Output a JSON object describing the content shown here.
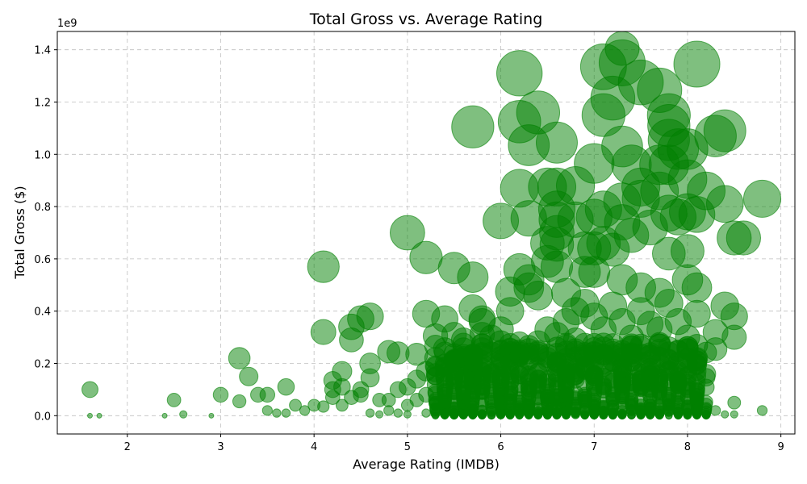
{
  "chart_data": {
    "type": "scatter",
    "title": "Total Gross vs. Average Rating",
    "xlabel": "Average Rating (IMDB)",
    "ylabel": "Total Gross ($)",
    "y_offset_label": "1e9",
    "xlim": [
      1.25,
      9.15
    ],
    "ylim": [
      -0.07,
      1.47
    ],
    "xticks": [
      2,
      3,
      4,
      5,
      6,
      7,
      8,
      9
    ],
    "yticks": [
      0.0,
      0.2,
      0.4,
      0.6,
      0.8,
      1.0,
      1.2,
      1.4
    ],
    "x_tick_labels": [
      "2",
      "3",
      "4",
      "5",
      "6",
      "7",
      "8",
      "9"
    ],
    "y_tick_labels": [
      "0.0",
      "0.2",
      "0.4",
      "0.6",
      "0.8",
      "1.0",
      "1.2",
      "1.4"
    ],
    "grid": true,
    "marker_color": "#008000",
    "marker_alpha": 0.5,
    "size_encoding": "marker area proportional to total gross",
    "points": [
      {
        "x": 1.6,
        "y": 0.1
      },
      {
        "x": 1.6,
        "y": 0.0
      },
      {
        "x": 1.7,
        "y": 0.0
      },
      {
        "x": 2.5,
        "y": 0.06
      },
      {
        "x": 2.6,
        "y": 0.005
      },
      {
        "x": 2.4,
        "y": 0.0
      },
      {
        "x": 2.9,
        "y": 0.0
      },
      {
        "x": 3.0,
        "y": 0.08
      },
      {
        "x": 3.2,
        "y": 0.22
      },
      {
        "x": 3.2,
        "y": 0.055
      },
      {
        "x": 3.3,
        "y": 0.15
      },
      {
        "x": 3.4,
        "y": 0.08
      },
      {
        "x": 3.5,
        "y": 0.08
      },
      {
        "x": 3.5,
        "y": 0.02
      },
      {
        "x": 3.6,
        "y": 0.01
      },
      {
        "x": 3.7,
        "y": 0.11
      },
      {
        "x": 3.7,
        "y": 0.01
      },
      {
        "x": 3.8,
        "y": 0.04
      },
      {
        "x": 3.9,
        "y": 0.02
      },
      {
        "x": 4.0,
        "y": 0.04
      },
      {
        "x": 4.1,
        "y": 0.57
      },
      {
        "x": 4.1,
        "y": 0.32
      },
      {
        "x": 4.1,
        "y": 0.035
      },
      {
        "x": 4.2,
        "y": 0.135
      },
      {
        "x": 4.2,
        "y": 0.07
      },
      {
        "x": 4.2,
        "y": 0.1
      },
      {
        "x": 4.3,
        "y": 0.17
      },
      {
        "x": 4.3,
        "y": 0.04
      },
      {
        "x": 4.3,
        "y": 0.11
      },
      {
        "x": 4.4,
        "y": 0.34
      },
      {
        "x": 4.4,
        "y": 0.29
      },
      {
        "x": 4.4,
        "y": 0.07
      },
      {
        "x": 4.5,
        "y": 0.37
      },
      {
        "x": 4.5,
        "y": 0.08
      },
      {
        "x": 4.5,
        "y": 0.1
      },
      {
        "x": 4.6,
        "y": 0.38
      },
      {
        "x": 4.6,
        "y": 0.2
      },
      {
        "x": 4.6,
        "y": 0.145
      },
      {
        "x": 4.7,
        "y": 0.06
      },
      {
        "x": 4.8,
        "y": 0.245
      },
      {
        "x": 4.8,
        "y": 0.06
      },
      {
        "x": 4.9,
        "y": 0.24
      },
      {
        "x": 4.9,
        "y": 0.1
      },
      {
        "x": 5.0,
        "y": 0.7
      },
      {
        "x": 5.0,
        "y": 0.11
      },
      {
        "x": 5.1,
        "y": 0.235
      },
      {
        "x": 5.1,
        "y": 0.14
      },
      {
        "x": 5.2,
        "y": 0.605
      },
      {
        "x": 5.2,
        "y": 0.39
      },
      {
        "x": 5.2,
        "y": 0.17
      },
      {
        "x": 5.3,
        "y": 0.305
      },
      {
        "x": 5.3,
        "y": 0.22
      },
      {
        "x": 5.3,
        "y": 0.19
      },
      {
        "x": 5.4,
        "y": 0.37
      },
      {
        "x": 5.4,
        "y": 0.255
      },
      {
        "x": 5.5,
        "y": 0.565
      },
      {
        "x": 5.5,
        "y": 0.31
      },
      {
        "x": 5.6,
        "y": 0.29
      },
      {
        "x": 5.7,
        "y": 1.105
      },
      {
        "x": 5.7,
        "y": 0.53
      },
      {
        "x": 5.7,
        "y": 0.41
      },
      {
        "x": 5.8,
        "y": 0.37
      },
      {
        "x": 5.8,
        "y": 0.36
      },
      {
        "x": 5.8,
        "y": 0.31
      },
      {
        "x": 5.9,
        "y": 0.3
      },
      {
        "x": 6.0,
        "y": 0.745
      },
      {
        "x": 6.0,
        "y": 0.33
      },
      {
        "x": 6.0,
        "y": 0.28
      },
      {
        "x": 6.1,
        "y": 0.475
      },
      {
        "x": 6.1,
        "y": 0.4
      },
      {
        "x": 6.2,
        "y": 1.31
      },
      {
        "x": 6.2,
        "y": 1.125
      },
      {
        "x": 6.2,
        "y": 0.87
      },
      {
        "x": 6.2,
        "y": 0.56
      },
      {
        "x": 6.3,
        "y": 1.035
      },
      {
        "x": 6.3,
        "y": 0.755
      },
      {
        "x": 6.3,
        "y": 0.52
      },
      {
        "x": 6.3,
        "y": 0.49
      },
      {
        "x": 6.4,
        "y": 1.16
      },
      {
        "x": 6.4,
        "y": 0.46
      },
      {
        "x": 6.5,
        "y": 0.875
      },
      {
        "x": 6.5,
        "y": 0.66
      },
      {
        "x": 6.5,
        "y": 0.59
      },
      {
        "x": 6.6,
        "y": 1.045
      },
      {
        "x": 6.6,
        "y": 0.875
      },
      {
        "x": 6.6,
        "y": 0.79
      },
      {
        "x": 6.6,
        "y": 0.75
      },
      {
        "x": 6.6,
        "y": 0.7
      },
      {
        "x": 6.6,
        "y": 0.655
      },
      {
        "x": 6.6,
        "y": 0.57
      },
      {
        "x": 6.7,
        "y": 0.47
      },
      {
        "x": 6.8,
        "y": 0.88
      },
      {
        "x": 6.8,
        "y": 0.75
      },
      {
        "x": 6.9,
        "y": 0.64
      },
      {
        "x": 6.9,
        "y": 0.55
      },
      {
        "x": 7.0,
        "y": 0.965
      },
      {
        "x": 7.0,
        "y": 0.76
      },
      {
        "x": 7.0,
        "y": 0.64
      },
      {
        "x": 7.0,
        "y": 0.55
      },
      {
        "x": 7.1,
        "y": 1.335
      },
      {
        "x": 7.1,
        "y": 1.15
      },
      {
        "x": 7.1,
        "y": 0.79
      },
      {
        "x": 7.1,
        "y": 0.66
      },
      {
        "x": 7.2,
        "y": 1.215
      },
      {
        "x": 7.2,
        "y": 0.635
      },
      {
        "x": 7.3,
        "y": 1.405
      },
      {
        "x": 7.3,
        "y": 1.35
      },
      {
        "x": 7.3,
        "y": 1.03
      },
      {
        "x": 7.3,
        "y": 0.82
      },
      {
        "x": 7.3,
        "y": 0.74
      },
      {
        "x": 7.3,
        "y": 0.52
      },
      {
        "x": 7.4,
        "y": 0.96
      },
      {
        "x": 7.4,
        "y": 0.69
      },
      {
        "x": 7.5,
        "y": 1.275
      },
      {
        "x": 7.5,
        "y": 0.875
      },
      {
        "x": 7.5,
        "y": 0.83
      },
      {
        "x": 7.5,
        "y": 0.49
      },
      {
        "x": 7.6,
        "y": 0.72
      },
      {
        "x": 7.7,
        "y": 1.245
      },
      {
        "x": 7.7,
        "y": 0.96
      },
      {
        "x": 7.7,
        "y": 0.86
      },
      {
        "x": 7.7,
        "y": 0.47
      },
      {
        "x": 7.8,
        "y": 1.15
      },
      {
        "x": 7.8,
        "y": 1.11
      },
      {
        "x": 7.8,
        "y": 1.055
      },
      {
        "x": 7.8,
        "y": 0.96
      },
      {
        "x": 7.8,
        "y": 0.775
      },
      {
        "x": 7.8,
        "y": 0.62
      },
      {
        "x": 7.9,
        "y": 1.02
      },
      {
        "x": 7.9,
        "y": 0.76
      },
      {
        "x": 8.0,
        "y": 1.02
      },
      {
        "x": 8.0,
        "y": 0.905
      },
      {
        "x": 8.0,
        "y": 0.78
      },
      {
        "x": 8.0,
        "y": 0.63
      },
      {
        "x": 8.0,
        "y": 0.52
      },
      {
        "x": 8.1,
        "y": 1.345
      },
      {
        "x": 8.1,
        "y": 0.77
      },
      {
        "x": 8.1,
        "y": 0.49
      },
      {
        "x": 8.1,
        "y": 0.39
      },
      {
        "x": 8.2,
        "y": 0.86
      },
      {
        "x": 8.2,
        "y": 0.16
      },
      {
        "x": 8.3,
        "y": 1.07
      },
      {
        "x": 8.3,
        "y": 0.32
      },
      {
        "x": 8.3,
        "y": 0.255
      },
      {
        "x": 8.4,
        "y": 1.09
      },
      {
        "x": 8.4,
        "y": 0.81
      },
      {
        "x": 8.4,
        "y": 0.42
      },
      {
        "x": 8.5,
        "y": 0.68
      },
      {
        "x": 8.5,
        "y": 0.38
      },
      {
        "x": 8.5,
        "y": 0.3
      },
      {
        "x": 8.5,
        "y": 0.05
      },
      {
        "x": 8.6,
        "y": 0.68
      },
      {
        "x": 8.8,
        "y": 0.83
      },
      {
        "x": 8.8,
        "y": 0.02
      },
      {
        "x": 5.4,
        "y": 0.15
      },
      {
        "x": 5.6,
        "y": 0.17
      },
      {
        "x": 5.8,
        "y": 0.21
      },
      {
        "x": 5.9,
        "y": 0.16
      },
      {
        "x": 6.0,
        "y": 0.2
      },
      {
        "x": 6.1,
        "y": 0.13
      },
      {
        "x": 6.2,
        "y": 0.24
      },
      {
        "x": 6.3,
        "y": 0.22
      },
      {
        "x": 6.4,
        "y": 0.28
      },
      {
        "x": 6.5,
        "y": 0.33
      },
      {
        "x": 6.6,
        "y": 0.31
      },
      {
        "x": 6.7,
        "y": 0.36
      },
      {
        "x": 6.7,
        "y": 0.2
      },
      {
        "x": 6.8,
        "y": 0.29
      },
      {
        "x": 6.8,
        "y": 0.4
      },
      {
        "x": 6.9,
        "y": 0.43
      },
      {
        "x": 6.9,
        "y": 0.23
      },
      {
        "x": 7.0,
        "y": 0.38
      },
      {
        "x": 7.0,
        "y": 0.27
      },
      {
        "x": 7.1,
        "y": 0.33
      },
      {
        "x": 7.1,
        "y": 0.2
      },
      {
        "x": 7.2,
        "y": 0.42
      },
      {
        "x": 7.2,
        "y": 0.25
      },
      {
        "x": 7.3,
        "y": 0.36
      },
      {
        "x": 7.3,
        "y": 0.22
      },
      {
        "x": 7.4,
        "y": 0.3
      },
      {
        "x": 7.4,
        "y": 0.18
      },
      {
        "x": 7.5,
        "y": 0.4
      },
      {
        "x": 7.5,
        "y": 0.26
      },
      {
        "x": 7.6,
        "y": 0.35
      },
      {
        "x": 7.6,
        "y": 0.21
      },
      {
        "x": 7.7,
        "y": 0.33
      },
      {
        "x": 7.7,
        "y": 0.2
      },
      {
        "x": 7.8,
        "y": 0.43
      },
      {
        "x": 7.8,
        "y": 0.24
      },
      {
        "x": 7.9,
        "y": 0.36
      },
      {
        "x": 7.9,
        "y": 0.19
      },
      {
        "x": 8.0,
        "y": 0.3
      },
      {
        "x": 8.0,
        "y": 0.15
      },
      {
        "x": 8.1,
        "y": 0.22
      },
      {
        "x": 8.2,
        "y": 0.03
      },
      {
        "x": 8.3,
        "y": 0.02
      },
      {
        "x": 5.0,
        "y": 0.04
      },
      {
        "x": 5.1,
        "y": 0.06
      },
      {
        "x": 5.2,
        "y": 0.08
      },
      {
        "x": 5.3,
        "y": 0.05
      },
      {
        "x": 5.5,
        "y": 0.09
      },
      {
        "x": 5.6,
        "y": 0.07
      },
      {
        "x": 5.7,
        "y": 0.11
      },
      {
        "x": 5.8,
        "y": 0.06
      },
      {
        "x": 5.9,
        "y": 0.09
      },
      {
        "x": 6.0,
        "y": 0.07
      },
      {
        "x": 6.1,
        "y": 0.1
      },
      {
        "x": 6.2,
        "y": 0.12
      },
      {
        "x": 6.3,
        "y": 0.09
      },
      {
        "x": 6.4,
        "y": 0.14
      },
      {
        "x": 6.5,
        "y": 0.11
      },
      {
        "x": 6.6,
        "y": 0.13
      },
      {
        "x": 6.7,
        "y": 0.1
      },
      {
        "x": 6.8,
        "y": 0.14
      },
      {
        "x": 6.9,
        "y": 0.12
      },
      {
        "x": 7.0,
        "y": 0.15
      },
      {
        "x": 7.1,
        "y": 0.1
      },
      {
        "x": 7.2,
        "y": 0.14
      },
      {
        "x": 7.3,
        "y": 0.12
      },
      {
        "x": 7.4,
        "y": 0.09
      },
      {
        "x": 7.5,
        "y": 0.13
      },
      {
        "x": 7.6,
        "y": 0.1
      },
      {
        "x": 7.7,
        "y": 0.12
      },
      {
        "x": 7.8,
        "y": 0.08
      },
      {
        "x": 7.9,
        "y": 0.05
      },
      {
        "x": 8.0,
        "y": 0.07
      },
      {
        "x": 8.1,
        "y": 0.04
      },
      {
        "x": 4.6,
        "y": 0.01
      },
      {
        "x": 4.7,
        "y": 0.005
      },
      {
        "x": 4.8,
        "y": 0.02
      },
      {
        "x": 4.9,
        "y": 0.01
      },
      {
        "x": 5.0,
        "y": 0.005
      },
      {
        "x": 5.2,
        "y": 0.01
      },
      {
        "x": 5.4,
        "y": 0.02
      },
      {
        "x": 5.6,
        "y": 0.01
      },
      {
        "x": 5.8,
        "y": 0.02
      },
      {
        "x": 6.0,
        "y": 0.01
      },
      {
        "x": 6.2,
        "y": 0.02
      },
      {
        "x": 6.4,
        "y": 0.01
      },
      {
        "x": 6.6,
        "y": 0.02
      },
      {
        "x": 6.8,
        "y": 0.01
      },
      {
        "x": 7.0,
        "y": 0.02
      },
      {
        "x": 7.2,
        "y": 0.01
      },
      {
        "x": 7.4,
        "y": 0.02
      },
      {
        "x": 7.6,
        "y": 0.01
      },
      {
        "x": 7.8,
        "y": 0.02
      },
      {
        "x": 8.0,
        "y": 0.01
      },
      {
        "x": 8.2,
        "y": 0.005
      },
      {
        "x": 8.4,
        "y": 0.005
      },
      {
        "x": 8.5,
        "y": 0.005
      }
    ]
  }
}
